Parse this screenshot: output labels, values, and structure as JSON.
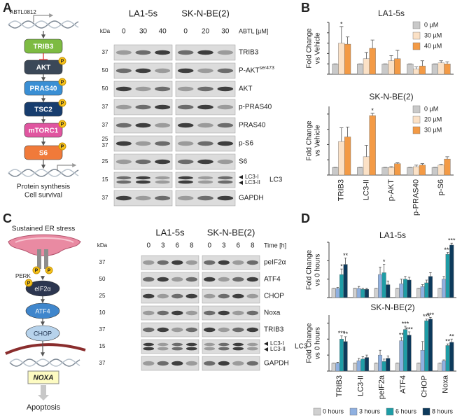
{
  "panels": [
    "A",
    "B",
    "C",
    "D"
  ],
  "panel_a": {
    "diagram": {
      "drug": "ABTL0812",
      "nodes": [
        "TRIB3",
        "AKT",
        "PRAS40",
        "TSC2",
        "mTORC1",
        "S6"
      ],
      "phospho": "P",
      "outcome": [
        "Protein synthesis",
        "Cell survival"
      ]
    },
    "blot": {
      "kda": "kDa",
      "cell_lines": [
        "LA1-5s",
        "SK-N-BE(2)"
      ],
      "lanes": [
        [
          "0",
          "30",
          "40"
        ],
        [
          "0",
          "20",
          "30"
        ]
      ],
      "lane_title": "ABTL [µM]",
      "rows": [
        {
          "kda": [
            "37"
          ],
          "label": "TRIB3"
        },
        {
          "kda": [
            "50"
          ],
          "label": "P-AKT",
          "superscript": "ser473"
        },
        {
          "kda": [
            "50"
          ],
          "label": "AKT"
        },
        {
          "kda": [
            "37"
          ],
          "label": "p-PRAS40"
        },
        {
          "kda": [
            "37"
          ],
          "label": "PRAS40"
        },
        {
          "kda": [
            "25",
            "37"
          ],
          "label": "p-S6"
        },
        {
          "kda": [
            "25"
          ],
          "label": "S6"
        },
        {
          "kda": [
            "15"
          ],
          "label": "LC3",
          "bands": [
            "LC3-I",
            "LC3-II"
          ]
        },
        {
          "kda": [
            "37"
          ],
          "label": "GAPDH"
        }
      ]
    }
  },
  "panel_c": {
    "diagram": {
      "stress": "Sustained ER stress",
      "receptor": "PERK",
      "nodes": [
        "eIF2α",
        "ATF4",
        "CHOP"
      ],
      "target": "NOXA",
      "outcome": "Apoptosis",
      "phospho": "P"
    },
    "blot": {
      "kda": "kDa",
      "cell_lines": [
        "LA1-5s",
        "SK-N-BE(2)"
      ],
      "lanes": [
        [
          "0",
          "3",
          "6",
          "8"
        ],
        [
          "0",
          "3",
          "6",
          "8"
        ]
      ],
      "lane_title": "Time [h]",
      "rows": [
        {
          "kda": [
            "37"
          ],
          "label": "peIF2α"
        },
        {
          "kda": [
            "50"
          ],
          "label": "ATF4"
        },
        {
          "kda": [
            "25"
          ],
          "label": "CHOP"
        },
        {
          "kda": [
            "10"
          ],
          "label": "Noxa"
        },
        {
          "kda": [
            "37"
          ],
          "label": "TRIB3"
        },
        {
          "kda": [
            "15"
          ],
          "label": "LC3",
          "bands": [
            "LC3-I",
            "LC3-II"
          ]
        },
        {
          "kda": [
            "37"
          ],
          "label": "GAPDH"
        }
      ]
    }
  },
  "chart_data": [
    {
      "type": "bar",
      "title": "LA1-5s",
      "ylabel": [
        "Fold Change",
        "vs Vehicle"
      ],
      "ylim": [
        0,
        5
      ],
      "yticks": [
        0,
        1,
        2,
        3,
        4,
        5
      ],
      "legend": "upper right",
      "series": [
        {
          "name": "0 µM",
          "color": "#c9c9c9",
          "values": [
            1,
            1,
            1,
            1,
            1
          ],
          "errors": [
            0,
            0,
            0,
            0,
            0
          ]
        },
        {
          "name": "30 µM",
          "color": "#fbe1c6",
          "values": [
            3.0,
            1.5,
            1.3,
            0.5,
            1.1
          ],
          "errors": [
            1.6,
            0.6,
            0.5,
            0.2,
            0.2
          ],
          "significance": [
            "*",
            null,
            null,
            null,
            null
          ]
        },
        {
          "name": "40 µM",
          "color": "#f39a45",
          "values": [
            2.9,
            2.5,
            1.5,
            0.8,
            1.0
          ],
          "errors": [
            0.7,
            0.8,
            0.8,
            0.5,
            0.2
          ]
        }
      ]
    },
    {
      "type": "bar",
      "title": "SK-N-BE(2)",
      "ylabel": [
        "Fold Change",
        "vs Vehicle"
      ],
      "ylim": [
        0,
        9
      ],
      "yticks": [
        0,
        2,
        4,
        6,
        8
      ],
      "legend": "upper right",
      "categories": [
        "TRIB3",
        "LC3-II",
        "p-AKT",
        "p-PRAS40",
        "p-S6"
      ],
      "series": [
        {
          "name": "0 µM",
          "color": "#c9c9c9",
          "values": [
            1,
            1,
            1,
            1,
            1
          ],
          "errors": [
            0,
            0,
            0,
            0,
            0
          ]
        },
        {
          "name": "20 µM",
          "color": "#fbe1c6",
          "values": [
            4.4,
            2.4,
            1.0,
            1.1,
            1.3
          ],
          "errors": [
            1.8,
            1.5,
            0.1,
            0.2,
            0.1
          ]
        },
        {
          "name": "30 µM",
          "color": "#f39a45",
          "values": [
            5.0,
            7.8,
            1.5,
            1.3,
            2.1
          ],
          "errors": [
            1.3,
            0.3,
            0.1,
            0.2,
            0.3
          ],
          "significance": [
            null,
            "*",
            null,
            null,
            null
          ]
        }
      ]
    },
    {
      "type": "bar",
      "title": "LA1-5s",
      "ylabel": [
        "Fold Change",
        "vs 0 hours"
      ],
      "ylim": [
        0,
        6
      ],
      "yticks": [
        0,
        2,
        4,
        6
      ],
      "series": [
        {
          "color": "#d0d0d0",
          "values": [
            1,
            1,
            1,
            1,
            1,
            1
          ],
          "errors": [
            0,
            0,
            0,
            0,
            0,
            0
          ]
        },
        {
          "color": "#8fb0e0",
          "values": [
            1.0,
            1.0,
            2.5,
            1.5,
            1.2,
            2.0
          ],
          "errors": [
            0.1,
            0.2,
            0.8,
            0.5,
            0.2,
            0.3
          ]
        },
        {
          "color": "#1e9da6",
          "values": [
            2.5,
            0.9,
            2.7,
            2.0,
            1.6,
            4.7
          ],
          "errors": [
            0.6,
            0.1,
            0.9,
            0.3,
            0.3,
            0.2
          ],
          "significance": [
            "*",
            null,
            "*",
            null,
            null,
            "***"
          ]
        },
        {
          "color": "#0d3a5c",
          "values": [
            3.6,
            0.9,
            1.4,
            1.9,
            2.3,
            5.7
          ],
          "errors": [
            0.7,
            0.1,
            0.4,
            0.3,
            0.4,
            0.2
          ],
          "significance": [
            "**",
            null,
            null,
            null,
            null,
            "***"
          ]
        }
      ]
    },
    {
      "type": "bar",
      "title": "SK-N-BE(2)",
      "ylabel": [
        "Fold Change",
        "vs 0 hours"
      ],
      "ylim": [
        0,
        7
      ],
      "yticks": [
        0,
        2,
        4,
        6
      ],
      "legend": "below",
      "categories": [
        "TRIB3",
        "LC3-II",
        "peIF2a",
        "ATF4",
        "CHOP",
        "Noxa"
      ],
      "series": [
        {
          "name": "0 hours",
          "color": "#d0d0d0",
          "values": [
            1,
            1,
            1,
            1,
            1,
            1
          ],
          "errors": [
            0,
            0,
            0,
            0,
            0,
            0
          ]
        },
        {
          "name": "3 hours",
          "color": "#8fb0e0",
          "values": [
            1.0,
            1.3,
            2.0,
            3.8,
            2.6,
            1.3
          ],
          "errors": [
            0.1,
            0.3,
            0.6,
            0.4,
            1.1,
            0.1
          ],
          "significance": [
            null,
            null,
            null,
            "**",
            null,
            null
          ]
        },
        {
          "name": "6 hours",
          "color": "#1e9da6",
          "values": [
            4.0,
            1.5,
            1.2,
            5.2,
            6.3,
            3.2
          ],
          "errors": [
            0.4,
            0.3,
            0.3,
            0.4,
            0.2,
            0.2
          ],
          "significance": [
            "***",
            null,
            null,
            "***",
            "***",
            "**"
          ]
        },
        {
          "name": "8 hours",
          "color": "#0d3a5c",
          "values": [
            3.7,
            1.7,
            1.6,
            4.5,
            6.5,
            3.6
          ],
          "errors": [
            0.6,
            0.3,
            0.3,
            0.4,
            0.2,
            0.4
          ],
          "significance": [
            "**",
            null,
            null,
            "***",
            "***",
            "**"
          ]
        }
      ]
    }
  ]
}
